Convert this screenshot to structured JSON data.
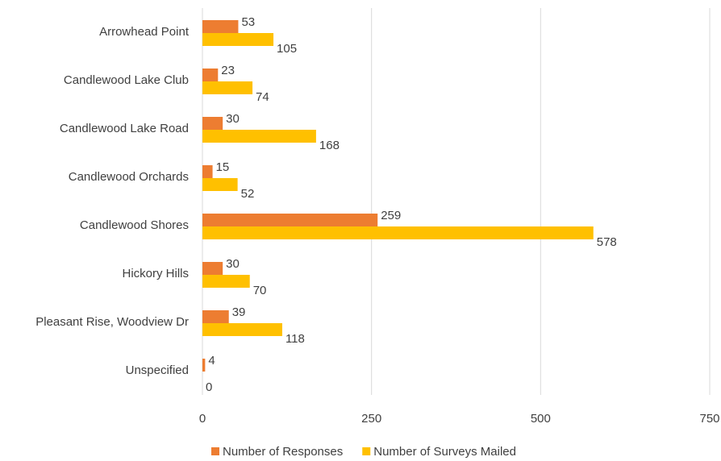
{
  "chart_data": {
    "type": "bar",
    "orientation": "horizontal",
    "categories": [
      "Arrowhead Point",
      "Candlewood Lake Club",
      "Candlewood Lake Road",
      "Candlewood Orchards",
      "Candlewood Shores",
      "Hickory Hills",
      "Pleasant Rise, Woodview Dr",
      "Unspecified"
    ],
    "series": [
      {
        "name": "Number of Responses",
        "color": "#ed7d31",
        "values": [
          53,
          23,
          30,
          15,
          259,
          30,
          39,
          4
        ]
      },
      {
        "name": "Number of Surveys Mailed",
        "color": "#ffc000",
        "values": [
          105,
          74,
          168,
          52,
          578,
          70,
          118,
          0
        ]
      }
    ],
    "xlim": [
      0,
      750
    ],
    "xticks": [
      0,
      250,
      500,
      750
    ],
    "grid": true,
    "legend": "bottom"
  }
}
